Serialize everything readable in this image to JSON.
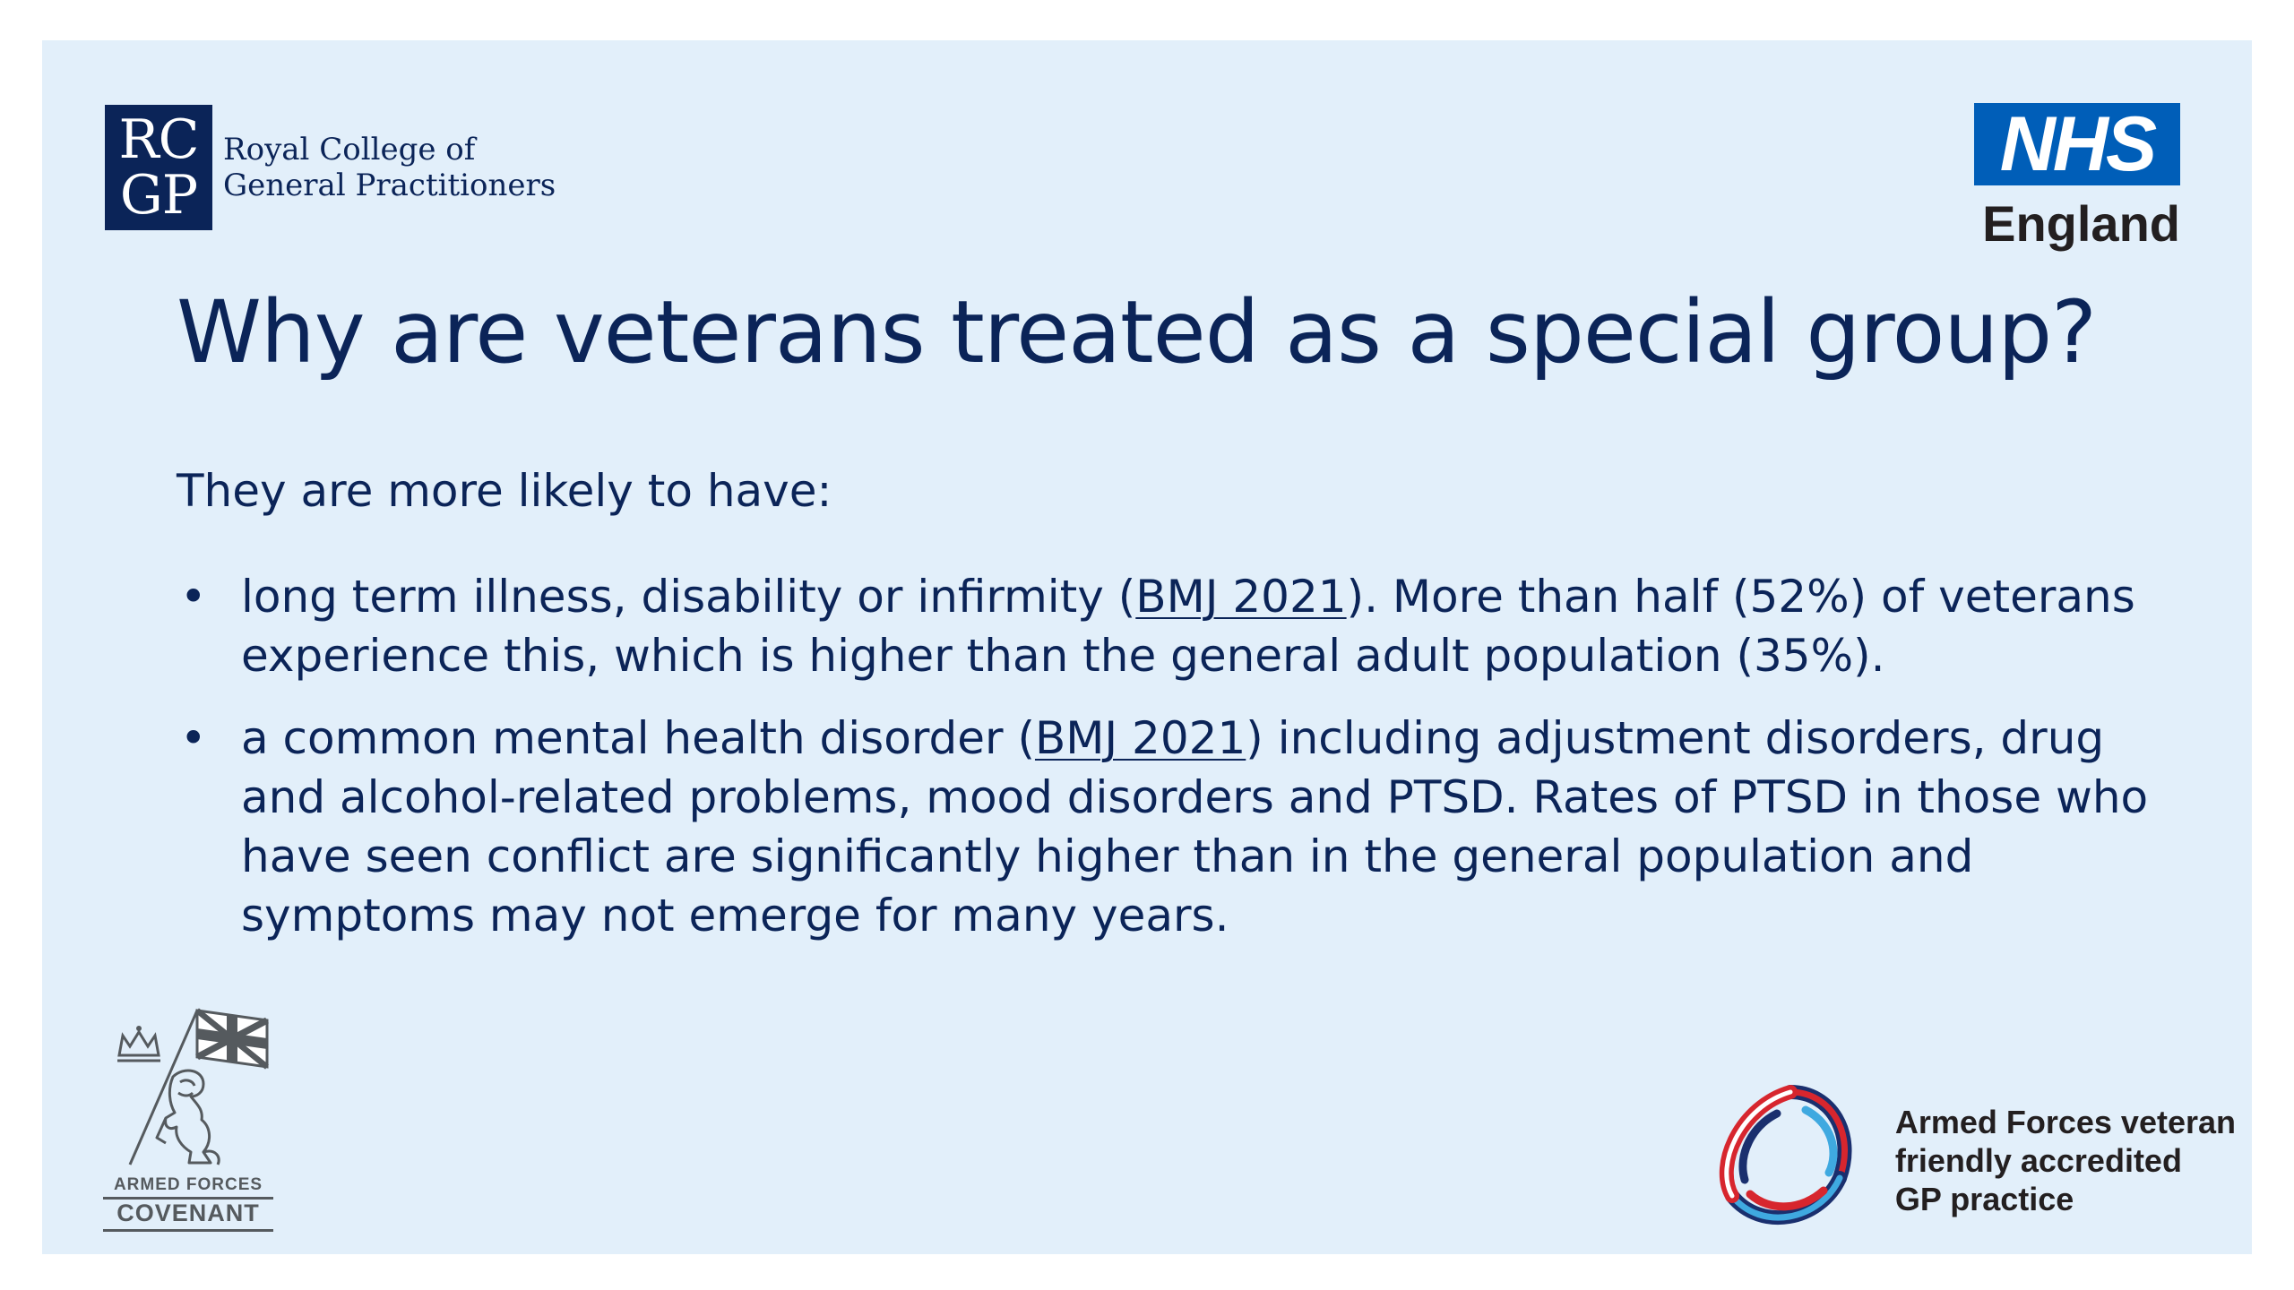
{
  "logos": {
    "rcgp": {
      "mark_top": "RC",
      "mark_bottom": "GP",
      "name_line1": "Royal College of",
      "name_line2": "General Practitioners",
      "color": "#0b2458"
    },
    "nhs": {
      "mark": "NHS",
      "region": "England",
      "color": "#005eb8"
    },
    "covenant": {
      "line1": "ARMED FORCES",
      "line2": "COVENANT"
    },
    "veteran_badge": {
      "line1": "Armed Forces veteran",
      "line2": "friendly accredited",
      "line3": "GP practice"
    }
  },
  "slide": {
    "background": "#e2effa",
    "title": "Why are veterans treated as a special group?",
    "intro": "They are more likely to have:",
    "bullets": [
      {
        "bullet": "•",
        "before_link": "long term illness, disability or infirmity (",
        "link": "BMJ 2021",
        "after_link": "). More than half (52%) of veterans experience this, which is higher than the general adult population (35%)."
      },
      {
        "bullet": "•",
        "before_link": "a common mental health disorder (",
        "link": "BMJ 2021",
        "after_link": ") including adjustment disorders, drug and alcohol-related problems, mood disorders and PTSD. Rates of PTSD in those who have seen conflict are significantly higher than in the general population and symptoms may not emerge for many years."
      }
    ]
  }
}
